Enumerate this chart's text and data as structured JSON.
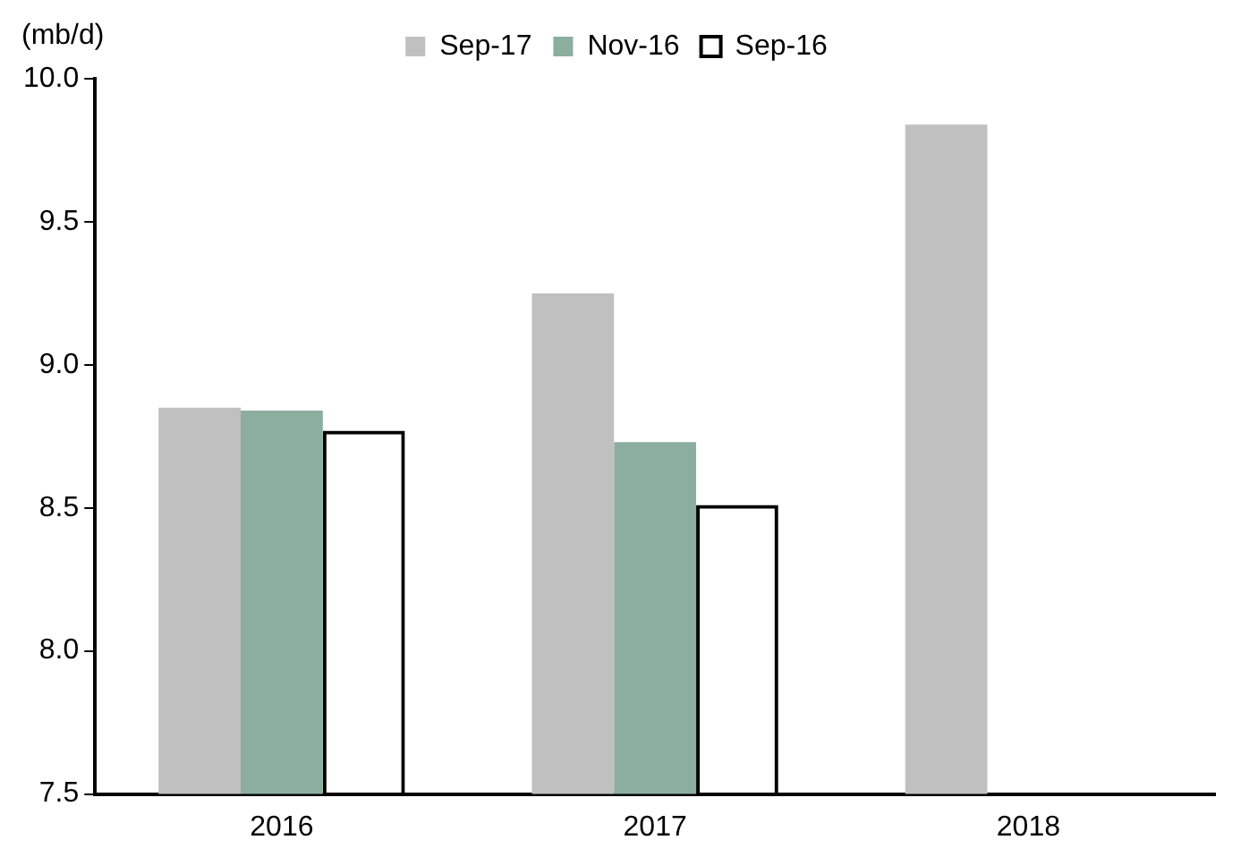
{
  "chart_data": {
    "type": "bar",
    "ylabel": "(mb/d)",
    "categories": [
      "2016",
      "2017",
      "2018"
    ],
    "series": [
      {
        "name": "Sep-17",
        "color": "#c0c0c0",
        "values": [
          8.85,
          9.25,
          9.84
        ]
      },
      {
        "name": "Nov-16",
        "color": "#8cae9f",
        "values": [
          8.84,
          8.73,
          null
        ]
      },
      {
        "name": "Sep-16",
        "color": "#000000",
        "values": [
          8.77,
          8.51,
          null
        ]
      }
    ],
    "ylim": [
      7.5,
      10.0
    ],
    "yticks": [
      {
        "value": 7.5,
        "label": "7.5"
      },
      {
        "value": 8,
        "label": "8.0"
      },
      {
        "value": 8.5,
        "label": "8.5"
      },
      {
        "value": 9,
        "label": "9.0"
      },
      {
        "value": 9.5,
        "label": "9.5"
      },
      {
        "value": 10,
        "label": "10.0"
      }
    ],
    "grid": false,
    "legend": "top"
  }
}
